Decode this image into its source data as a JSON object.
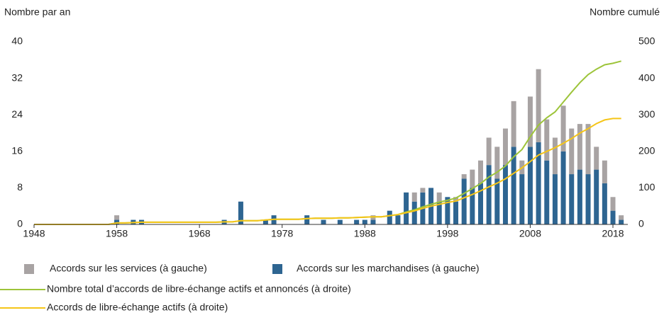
{
  "chart_data": {
    "type": "bar-line",
    "y_label": "Nombre par an",
    "y2_label": "Nombre cumulé",
    "x": [
      1948,
      1949,
      1950,
      1951,
      1952,
      1953,
      1954,
      1955,
      1956,
      1957,
      1958,
      1959,
      1960,
      1961,
      1962,
      1963,
      1964,
      1965,
      1966,
      1967,
      1968,
      1969,
      1970,
      1971,
      1972,
      1973,
      1974,
      1975,
      1976,
      1977,
      1978,
      1979,
      1980,
      1981,
      1982,
      1983,
      1984,
      1985,
      1986,
      1987,
      1988,
      1989,
      1990,
      1991,
      1992,
      1993,
      1994,
      1995,
      1996,
      1997,
      1998,
      1999,
      2000,
      2001,
      2002,
      2003,
      2004,
      2005,
      2006,
      2007,
      2008,
      2009,
      2010,
      2011,
      2012,
      2013,
      2014,
      2015,
      2016,
      2017,
      2018,
      2019
    ],
    "xlim": [
      1948,
      2019.8
    ],
    "xticks": [
      1948,
      1958,
      1968,
      1978,
      1988,
      1998,
      2008,
      2018
    ],
    "ylim": [
      0,
      40
    ],
    "yticks": [
      0,
      8,
      16,
      24,
      32,
      40
    ],
    "y2lim": [
      0,
      500
    ],
    "y2ticks": [
      0,
      100,
      200,
      300,
      400,
      500
    ],
    "series": [
      {
        "name": "Accords sur les services (à gauche)",
        "type": "bar",
        "color": "#a8a3a3",
        "axis": "y",
        "values": [
          0,
          0,
          0,
          0,
          0,
          0,
          0,
          0,
          0,
          0,
          1,
          0,
          0,
          0,
          0,
          0,
          0,
          0,
          0,
          0,
          0,
          0,
          0,
          0,
          0,
          0,
          0,
          0,
          0,
          0,
          0,
          0,
          0,
          0,
          0,
          0,
          0,
          0,
          0,
          0,
          0,
          1,
          0,
          0,
          0,
          0,
          2,
          1,
          0,
          2,
          0,
          1,
          1,
          4,
          5,
          6,
          7,
          8,
          10,
          3,
          11,
          16,
          9,
          8,
          10,
          10,
          10,
          11,
          5,
          5,
          3,
          1
        ]
      },
      {
        "name": "Accords sur les marchandises (à gauche)",
        "type": "bar",
        "color": "#2e6591",
        "axis": "y",
        "values": [
          0,
          0,
          0,
          0,
          0,
          0,
          0,
          0,
          0,
          0,
          1,
          0,
          1,
          1,
          0,
          0,
          0,
          0,
          0,
          0,
          0,
          0,
          0,
          1,
          0,
          5,
          0,
          0,
          1,
          2,
          0,
          0,
          0,
          2,
          0,
          1,
          0,
          1,
          0,
          1,
          1,
          1,
          0,
          3,
          2,
          7,
          5,
          7,
          8,
          5,
          6,
          5,
          10,
          8,
          9,
          13,
          10,
          13,
          17,
          11,
          17,
          18,
          14,
          11,
          16,
          11,
          12,
          11,
          12,
          9,
          3,
          1
        ]
      },
      {
        "name": "Nombre total d’accords de libre-échange actifs et annoncés (à droite)",
        "type": "line",
        "color": "#9dc43a",
        "axis": "y2",
        "values": [
          0,
          0,
          0,
          0,
          0,
          0,
          0,
          0,
          0,
          0,
          4,
          4,
          5,
          6,
          6,
          6,
          6,
          6,
          6,
          6,
          6,
          6,
          6,
          7,
          7,
          10,
          10,
          10,
          12,
          14,
          14,
          14,
          14,
          16,
          17,
          17,
          17,
          18,
          18,
          19,
          20,
          21,
          21,
          24,
          27,
          34,
          40,
          48,
          55,
          61,
          66,
          72,
          85,
          98,
          112,
          130,
          143,
          160,
          185,
          205,
          240,
          272,
          292,
          308,
          335,
          362,
          388,
          410,
          425,
          437,
          441,
          447
        ]
      },
      {
        "name": "Accords de libre-échange actifs (à droite)",
        "type": "line",
        "color": "#f5c518",
        "axis": "y2",
        "values": [
          0,
          0,
          0,
          0,
          0,
          0,
          0,
          0,
          0,
          0,
          4,
          4,
          5,
          6,
          6,
          6,
          6,
          6,
          6,
          6,
          6,
          6,
          6,
          7,
          7,
          10,
          10,
          10,
          12,
          14,
          14,
          14,
          14,
          16,
          17,
          17,
          17,
          18,
          18,
          19,
          20,
          21,
          21,
          24,
          27,
          32,
          37,
          44,
          50,
          55,
          60,
          64,
          73,
          82,
          92,
          103,
          113,
          125,
          140,
          155,
          172,
          190,
          200,
          210,
          222,
          235,
          250,
          262,
          276,
          286,
          290,
          290
        ]
      }
    ]
  }
}
